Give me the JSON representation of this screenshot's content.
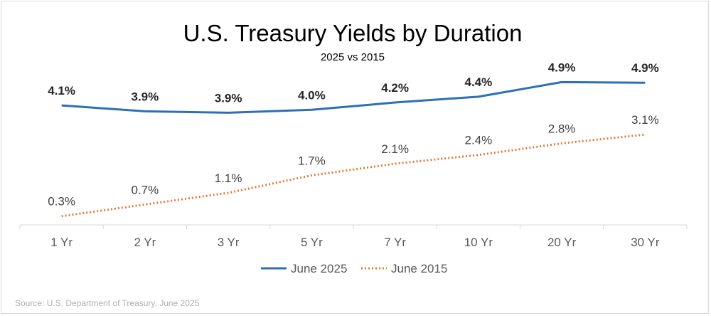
{
  "chart_data": {
    "type": "line",
    "title": "U.S. Treasury Yields by Duration",
    "subtitle": "2025 vs 2015",
    "categories": [
      "1 Yr",
      "2 Yr",
      "3 Yr",
      "5 Yr",
      "7 Yr",
      "10 Yr",
      "20 Yr",
      "30 Yr"
    ],
    "series": [
      {
        "name": "June 2025",
        "values": [
          4.1,
          3.9,
          3.85,
          3.95,
          4.2,
          4.4,
          4.9,
          4.88
        ],
        "labels": [
          "4.1%",
          "3.9%",
          "3.9%",
          "4.0%",
          "4.2%",
          "4.4%",
          "4.9%",
          "4.9%"
        ],
        "color": "#2e6fb7",
        "style": "solid"
      },
      {
        "name": "June 2015",
        "values": [
          0.3,
          0.7,
          1.1,
          1.7,
          2.1,
          2.4,
          2.8,
          3.1
        ],
        "labels": [
          "0.3%",
          "0.7%",
          "1.1%",
          "1.7%",
          "2.1%",
          "2.4%",
          "2.8%",
          "3.1%"
        ],
        "color": "#e07b39",
        "style": "dotted"
      }
    ],
    "ylim": [
      0,
      5.3
    ],
    "grid": false,
    "legend": "bottom",
    "source": "Source: U.S. Department of Treasury, June 2025"
  }
}
